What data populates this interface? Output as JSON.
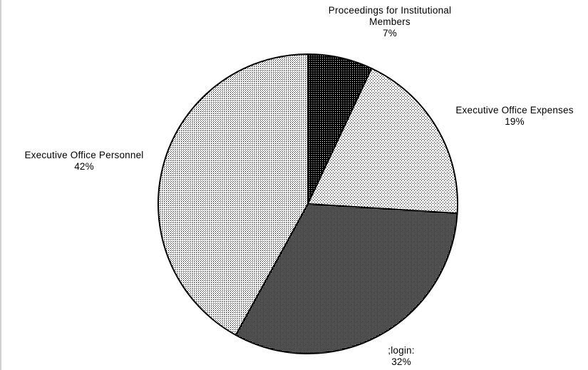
{
  "chart_data": {
    "type": "pie",
    "title": "",
    "slices": [
      {
        "name": "Proceedings for Institutional Members",
        "name_lines": [
          "Proceedings for Institutional",
          "Members"
        ],
        "value": 7,
        "value_label": "7%",
        "pattern": "dense-dark"
      },
      {
        "name": "Executive Office Expenses",
        "name_lines": [
          "Executive Office Expenses"
        ],
        "value": 19,
        "value_label": "19%",
        "pattern": "sparse-dots"
      },
      {
        "name": ";login:",
        "name_lines": [
          ";login:"
        ],
        "value": 32,
        "value_label": "32%",
        "pattern": "dark-checker"
      },
      {
        "name": "Executive Office Personnel",
        "name_lines": [
          "Executive Office Personnel"
        ],
        "value": 42,
        "value_label": "42%",
        "pattern": "fine-dots"
      }
    ],
    "start_angle_deg": 0,
    "direction": "clockwise",
    "legend": "none",
    "labels": "outside"
  }
}
